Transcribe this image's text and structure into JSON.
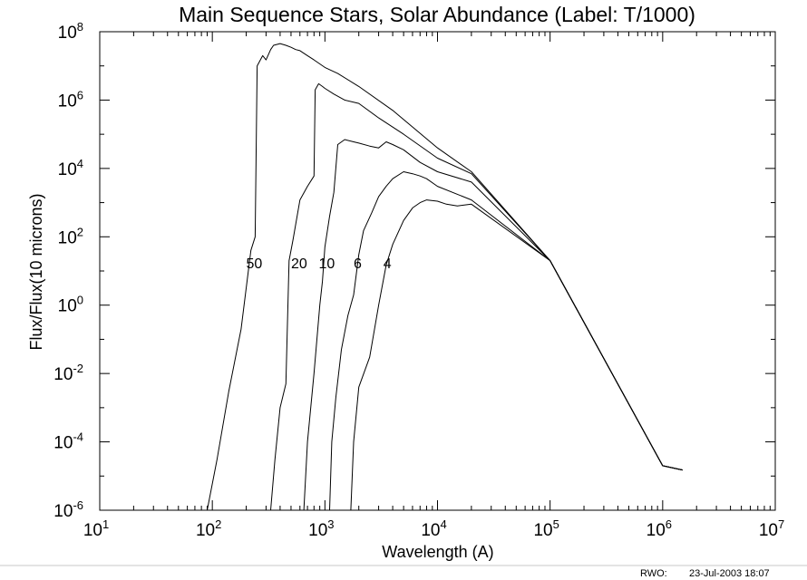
{
  "chart_data": {
    "type": "line",
    "title": "Main Sequence Stars, Solar Abundance (Label: T/1000)",
    "xlabel": "Wavelength (A)",
    "ylabel": "Flux/Flux(10 microns)",
    "x_scale": "log",
    "y_scale": "log",
    "xlim": [
      10,
      10000000
    ],
    "ylim": [
      1e-06,
      100000000
    ],
    "x_ticks": [
      {
        "base": "10",
        "exp": "1",
        "value": 10
      },
      {
        "base": "10",
        "exp": "2",
        "value": 100
      },
      {
        "base": "10",
        "exp": "3",
        "value": 1000
      },
      {
        "base": "10",
        "exp": "4",
        "value": 10000
      },
      {
        "base": "10",
        "exp": "5",
        "value": 100000
      },
      {
        "base": "10",
        "exp": "6",
        "value": 1000000
      },
      {
        "base": "10",
        "exp": "7",
        "value": 10000000
      }
    ],
    "y_ticks": [
      {
        "base": "10",
        "exp": "-6",
        "value": 1e-06
      },
      {
        "base": "10",
        "exp": "-4",
        "value": 0.0001
      },
      {
        "base": "10",
        "exp": "-2",
        "value": 0.01
      },
      {
        "base": "10",
        "exp": "0",
        "value": 1
      },
      {
        "base": "10",
        "exp": "2",
        "value": 100
      },
      {
        "base": "10",
        "exp": "4",
        "value": 10000
      },
      {
        "base": "10",
        "exp": "6",
        "value": 1000000
      },
      {
        "base": "10",
        "exp": "8",
        "value": 100000000
      }
    ],
    "grid": false,
    "legend": "none",
    "series": [
      {
        "label": "50",
        "label_x": 200,
        "label_y": 12,
        "points": [
          [
            90,
            1e-06
          ],
          [
            110,
            3e-05
          ],
          [
            140,
            0.003
          ],
          [
            180,
            0.2
          ],
          [
            220,
            40
          ],
          [
            240,
            100
          ],
          [
            250,
            10000000
          ],
          [
            280,
            20000000
          ],
          [
            300,
            15000000
          ],
          [
            330,
            30000000
          ],
          [
            350,
            40000000
          ],
          [
            400,
            45000000
          ],
          [
            450,
            40000000
          ],
          [
            500,
            35000000
          ],
          [
            550,
            30000000
          ],
          [
            600,
            28000000
          ],
          [
            700,
            20000000
          ],
          [
            800,
            15000000
          ],
          [
            1000,
            9000000
          ],
          [
            1300,
            6000000
          ],
          [
            2000,
            2500000
          ],
          [
            4000,
            500000
          ],
          [
            10000,
            40000
          ],
          [
            20000,
            8000
          ],
          [
            100000,
            20
          ],
          [
            1000000,
            2e-05
          ],
          [
            1500000,
            1.5e-05
          ]
        ]
      },
      {
        "label": "20",
        "label_x": 500,
        "label_y": 12,
        "points": [
          [
            330,
            1e-06
          ],
          [
            360,
            3e-05
          ],
          [
            400,
            0.001
          ],
          [
            450,
            0.005
          ],
          [
            480,
            20
          ],
          [
            520,
            80
          ],
          [
            600,
            1200
          ],
          [
            700,
            3000
          ],
          [
            800,
            6000
          ],
          [
            820,
            2000000
          ],
          [
            880,
            3000000
          ],
          [
            950,
            2500000
          ],
          [
            1000,
            2200000
          ],
          [
            1200,
            1500000
          ],
          [
            1500,
            1000000
          ],
          [
            2000,
            800000
          ],
          [
            3000,
            300000
          ],
          [
            5000,
            100000
          ],
          [
            10000,
            20000
          ],
          [
            20000,
            7000
          ],
          [
            100000,
            20
          ],
          [
            1000000,
            2e-05
          ],
          [
            1500000,
            1.5e-05
          ]
        ]
      },
      {
        "label": "10",
        "label_x": 880,
        "label_y": 12,
        "points": [
          [
            650,
            1e-06
          ],
          [
            700,
            0.0001
          ],
          [
            800,
            0.01
          ],
          [
            900,
            1
          ],
          [
            950,
            5
          ],
          [
            1000,
            50
          ],
          [
            1100,
            400
          ],
          [
            1200,
            2000
          ],
          [
            1300,
            50000
          ],
          [
            1500,
            70000
          ],
          [
            1800,
            60000
          ],
          [
            2000,
            55000
          ],
          [
            2500,
            45000
          ],
          [
            3000,
            40000
          ],
          [
            3500,
            60000
          ],
          [
            4000,
            50000
          ],
          [
            5000,
            35000
          ],
          [
            7000,
            15000
          ],
          [
            10000,
            8000
          ],
          [
            20000,
            4000
          ],
          [
            100000,
            20
          ],
          [
            1000000,
            2e-05
          ],
          [
            1500000,
            1.5e-05
          ]
        ]
      },
      {
        "label": "6",
        "label_x": 1800,
        "label_y": 12,
        "points": [
          [
            1100,
            1e-06
          ],
          [
            1150,
            0.0001
          ],
          [
            1250,
            0.002
          ],
          [
            1400,
            0.05
          ],
          [
            1600,
            0.5
          ],
          [
            1800,
            2
          ],
          [
            2000,
            30
          ],
          [
            2200,
            150
          ],
          [
            2600,
            500
          ],
          [
            3000,
            1500
          ],
          [
            3500,
            3000
          ],
          [
            4000,
            5000
          ],
          [
            5000,
            8000
          ],
          [
            6000,
            7000
          ],
          [
            7000,
            6000
          ],
          [
            8000,
            5000
          ],
          [
            10000,
            3000
          ],
          [
            20000,
            1200
          ],
          [
            100000,
            20
          ],
          [
            1000000,
            2e-05
          ],
          [
            1500000,
            1.5e-05
          ]
        ]
      },
      {
        "label": "4",
        "label_x": 3300,
        "label_y": 12,
        "points": [
          [
            1700,
            1e-06
          ],
          [
            1800,
            0.0001
          ],
          [
            2000,
            0.004
          ],
          [
            2500,
            0.03
          ],
          [
            3000,
            1
          ],
          [
            3500,
            15
          ],
          [
            4000,
            60
          ],
          [
            5000,
            300
          ],
          [
            6000,
            700
          ],
          [
            7000,
            1000
          ],
          [
            8000,
            1200
          ],
          [
            10000,
            1100
          ],
          [
            12000,
            900
          ],
          [
            15000,
            800
          ],
          [
            20000,
            900
          ],
          [
            100000,
            20
          ],
          [
            1000000,
            2e-05
          ],
          [
            1500000,
            1.5e-05
          ]
        ]
      }
    ]
  },
  "footer": {
    "author": "RWO:",
    "date": "23-Jul-2003 18:07"
  }
}
